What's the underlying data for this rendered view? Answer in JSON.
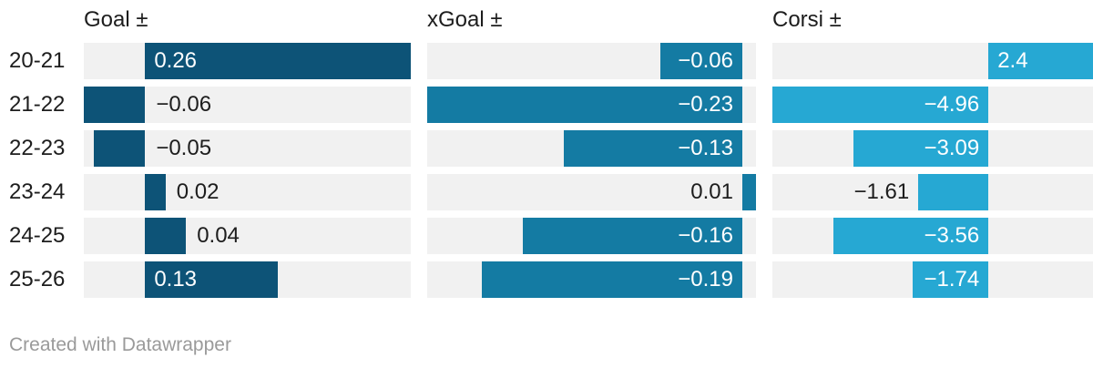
{
  "chart_data": {
    "type": "bar",
    "orientation": "horizontal",
    "layout": "split-columns",
    "grid": false,
    "legend": "none",
    "categories": [
      "20-21",
      "21-22",
      "22-23",
      "23-24",
      "24-25",
      "25-26"
    ],
    "series": [
      {
        "name": "Goal ±",
        "color": "#0d5377",
        "values": [
          0.26,
          -0.06,
          -0.05,
          0.02,
          0.04,
          0.13
        ],
        "labels": [
          "0.26",
          "−0.06",
          "−0.05",
          "0.02",
          "0.04",
          "0.13"
        ],
        "label_pos": [
          "inside",
          "right",
          "right",
          "right",
          "right",
          "inside"
        ],
        "axis_min": -0.06,
        "axis_max": 0.26
      },
      {
        "name": "xGoal ±",
        "color": "#147ba3",
        "values": [
          -0.06,
          -0.23,
          -0.13,
          0.01,
          -0.16,
          -0.19
        ],
        "labels": [
          "−0.06",
          "−0.23",
          "−0.13",
          "0.01",
          "−0.16",
          "−0.19"
        ],
        "label_pos": [
          "inside",
          "inside",
          "inside",
          "left",
          "inside",
          "inside"
        ],
        "axis_min": -0.23,
        "axis_max": 0.01
      },
      {
        "name": "Corsi ±",
        "color": "#26a8d3",
        "values": [
          2.4,
          -4.96,
          -3.09,
          -1.61,
          -3.56,
          -1.74
        ],
        "labels": [
          "2.4",
          "−4.96",
          "−3.09",
          "−1.61",
          "−3.56",
          "−1.74"
        ],
        "label_pos": [
          "inside",
          "inside",
          "inside",
          "left",
          "inside",
          "inside"
        ],
        "axis_min": -4.96,
        "axis_max": 2.4
      }
    ],
    "colors": {
      "track": "#f1f1f1",
      "label_dark": "#1d1d1d",
      "label_light": "#ffffff",
      "header_text": "#1d1d1d",
      "row_label_text": "#1d1d1d",
      "footer_text": "#9a9a9a"
    },
    "footer": "Created with Datawrapper"
  }
}
